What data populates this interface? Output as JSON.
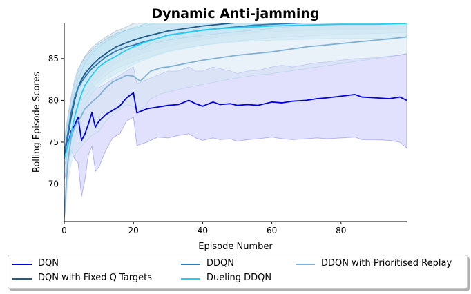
{
  "chart_data": {
    "type": "line",
    "title": "Dynamic Anti-jamming",
    "xlabel": "Episode Number",
    "ylabel": "Rolling Episode Scores",
    "xlim": [
      0,
      99
    ],
    "ylim": [
      65.5,
      89.2
    ],
    "xticks": [
      0,
      20,
      40,
      60,
      80
    ],
    "yticks": [
      70,
      75,
      80,
      85
    ],
    "grid": false,
    "legend_position": "below",
    "series": [
      {
        "name": "DQN",
        "color": "#0000dd",
        "band_color": "#c8c8fb",
        "x": [
          0,
          1,
          2,
          3,
          4,
          5,
          6,
          7,
          8,
          9,
          10,
          12,
          14,
          16,
          18,
          20,
          21,
          24,
          27,
          30,
          33,
          36,
          38,
          40,
          43,
          45,
          48,
          50,
          53,
          56,
          60,
          63,
          66,
          70,
          73,
          76,
          80,
          84,
          86,
          90,
          94,
          97,
          99
        ],
        "mean": [
          73.2,
          74.5,
          76.3,
          77.0,
          78.0,
          75.2,
          76.0,
          77.2,
          78.5,
          76.8,
          77.5,
          78.3,
          78.8,
          79.3,
          80.3,
          80.9,
          78.5,
          79.0,
          79.2,
          79.4,
          79.5,
          80.0,
          79.6,
          79.3,
          79.8,
          79.5,
          79.6,
          79.4,
          79.5,
          79.4,
          79.8,
          79.7,
          79.9,
          80.0,
          80.2,
          80.3,
          80.5,
          80.7,
          80.4,
          80.3,
          80.2,
          80.4,
          80.0
        ],
        "upper": [
          74.0,
          75.5,
          78.5,
          80.5,
          82.0,
          80.0,
          80.5,
          81.0,
          82.0,
          81.5,
          81.5,
          82.0,
          82.5,
          83.0,
          83.5,
          84.0,
          82.0,
          82.5,
          83.0,
          83.5,
          83.5,
          84.0,
          83.5,
          83.5,
          84.0,
          83.8,
          83.5,
          83.2,
          83.5,
          83.6,
          84.0,
          84.2,
          84.0,
          84.3,
          84.5,
          84.6,
          84.8,
          85.0,
          85.0,
          85.1,
          85.3,
          85.4,
          85.6
        ],
        "lower": [
          70.5,
          72.0,
          74.0,
          73.0,
          72.5,
          68.5,
          70.5,
          73.5,
          74.5,
          71.5,
          72.0,
          74.0,
          75.5,
          76.0,
          77.5,
          78.0,
          74.6,
          75.0,
          75.6,
          75.5,
          75.8,
          76.0,
          75.5,
          75.2,
          75.5,
          75.3,
          75.4,
          75.1,
          75.3,
          75.4,
          75.6,
          75.4,
          75.3,
          75.4,
          75.5,
          75.4,
          75.5,
          75.6,
          75.3,
          75.3,
          75.2,
          75.0,
          74.3
        ]
      },
      {
        "name": "DQN with Fixed Q Targets",
        "color": "#1f5a8c",
        "band_color": "#c9ddea",
        "x": [
          0,
          1,
          2,
          3,
          4,
          5,
          6,
          8,
          10,
          12,
          15,
          18,
          20,
          23,
          26,
          30,
          35,
          40,
          45,
          50,
          55,
          60,
          70,
          80,
          90,
          99
        ],
        "mean": [
          73.5,
          75.5,
          78.0,
          80.0,
          81.5,
          82.5,
          83.2,
          84.2,
          85.0,
          85.6,
          86.4,
          86.9,
          87.2,
          87.6,
          87.9,
          88.3,
          88.6,
          88.9,
          89.1,
          89.3,
          89.4,
          89.5,
          89.6,
          89.7,
          89.7,
          89.8
        ],
        "upper": [
          75.0,
          77.5,
          80.0,
          82.0,
          83.5,
          84.5,
          85.3,
          86.3,
          87.0,
          87.6,
          88.3,
          88.8,
          89.2,
          89.5,
          89.8,
          90.0,
          90.2,
          90.4,
          90.5,
          90.6,
          90.7,
          90.8,
          90.9,
          91.0,
          91.0,
          91.0
        ],
        "lower": [
          72.0,
          73.5,
          76.0,
          78.0,
          79.5,
          80.5,
          81.0,
          82.0,
          82.8,
          83.5,
          84.4,
          85.0,
          85.3,
          85.7,
          86.0,
          86.5,
          86.9,
          87.3,
          87.6,
          87.9,
          88.1,
          88.2,
          88.4,
          88.5,
          88.5,
          88.6
        ]
      },
      {
        "name": "DDQN",
        "color": "#2e7bb6",
        "band_color": "#c6dced",
        "x": [
          0,
          1,
          2,
          3,
          4,
          5,
          6,
          8,
          10,
          12,
          15,
          18,
          20,
          23,
          26,
          30,
          35,
          40,
          45,
          50,
          55,
          60,
          70,
          80,
          90,
          99
        ],
        "mean": [
          73.8,
          76.0,
          78.5,
          80.3,
          81.5,
          82.2,
          82.8,
          83.8,
          84.5,
          85.2,
          85.9,
          86.4,
          86.6,
          87.0,
          87.3,
          87.8,
          88.1,
          88.4,
          88.6,
          88.8,
          89.0,
          89.1,
          89.3,
          89.4,
          89.5,
          89.6
        ],
        "upper": [
          75.5,
          78.0,
          80.5,
          82.5,
          83.8,
          84.5,
          85.2,
          86.0,
          86.8,
          87.3,
          88.0,
          88.4,
          88.6,
          88.9,
          89.2,
          89.6,
          89.9,
          90.1,
          90.3,
          90.4,
          90.5,
          90.6,
          90.8,
          90.9,
          91.0,
          91.0
        ],
        "lower": [
          72.0,
          74.0,
          76.5,
          78.0,
          79.2,
          80.0,
          80.5,
          81.5,
          82.3,
          83.0,
          83.8,
          84.3,
          84.6,
          85.0,
          85.4,
          85.9,
          86.3,
          86.6,
          86.9,
          87.1,
          87.3,
          87.5,
          87.7,
          87.9,
          88.0,
          88.1
        ]
      },
      {
        "name": "Dueling DDQN",
        "color": "#22ccf2",
        "band_color": "#bfeaf6",
        "x": [
          0,
          1,
          2,
          3,
          4,
          5,
          6,
          8,
          10,
          12,
          15,
          18,
          20,
          23,
          26,
          30,
          35,
          40,
          45,
          50,
          55,
          60,
          70,
          80,
          90,
          99
        ],
        "mean": [
          73.0,
          74.5,
          76.0,
          78.0,
          79.5,
          80.8,
          81.8,
          83.0,
          84.0,
          84.6,
          85.3,
          86.0,
          86.4,
          86.9,
          87.3,
          87.8,
          88.1,
          88.4,
          88.6,
          88.7,
          88.8,
          88.9,
          89.0,
          89.1,
          89.1,
          89.2
        ],
        "upper": [
          75.0,
          77.0,
          79.0,
          81.0,
          82.5,
          83.5,
          84.5,
          85.6,
          86.4,
          87.0,
          87.8,
          88.4,
          88.7,
          89.1,
          89.4,
          89.7,
          90.0,
          90.2,
          90.3,
          90.4,
          90.5,
          90.6,
          90.7,
          90.8,
          90.8,
          90.9
        ],
        "lower": [
          71.0,
          72.0,
          73.5,
          75.5,
          77.0,
          78.5,
          79.5,
          80.8,
          81.8,
          82.5,
          83.2,
          83.8,
          84.3,
          84.8,
          85.3,
          85.8,
          86.2,
          86.6,
          86.8,
          87.0,
          87.1,
          87.2,
          87.3,
          87.4,
          87.4,
          87.5
        ]
      },
      {
        "name": "DDQN with Prioritised Replay",
        "color": "#7fb1d8",
        "band_color": "#d7e8f3",
        "x": [
          0,
          1,
          2,
          3,
          4,
          5,
          6,
          8,
          10,
          12,
          14,
          16,
          18,
          20,
          22,
          25,
          28,
          30,
          35,
          40,
          45,
          50,
          55,
          60,
          65,
          70,
          75,
          80,
          85,
          90,
          95,
          99
        ],
        "mean": [
          66.0,
          72.5,
          75.5,
          76.8,
          77.5,
          78.2,
          79.0,
          79.8,
          80.5,
          81.5,
          82.2,
          82.6,
          83.0,
          82.9,
          82.3,
          83.5,
          83.9,
          84.0,
          84.4,
          84.8,
          85.1,
          85.4,
          85.6,
          85.8,
          86.1,
          86.4,
          86.6,
          86.8,
          87.0,
          87.2,
          87.4,
          87.6
        ],
        "upper": [
          67.0,
          75.0,
          78.5,
          80.0,
          81.0,
          82.0,
          83.0,
          84.0,
          84.8,
          85.5,
          86.0,
          86.3,
          86.5,
          86.5,
          86.0,
          86.8,
          87.0,
          87.2,
          87.5,
          87.8,
          88.0,
          88.2,
          88.4,
          88.6,
          88.8,
          89.0,
          89.1,
          89.2,
          89.3,
          89.4,
          89.5,
          89.6
        ],
        "lower": [
          65.0,
          70.0,
          72.5,
          73.5,
          74.0,
          74.5,
          75.0,
          75.8,
          76.3,
          77.5,
          78.3,
          78.9,
          79.5,
          79.3,
          78.6,
          80.2,
          80.8,
          81.0,
          81.5,
          81.9,
          82.3,
          82.7,
          83.0,
          83.2,
          83.5,
          83.8,
          84.1,
          84.4,
          84.7,
          85.0,
          85.3,
          85.6
        ]
      }
    ]
  }
}
